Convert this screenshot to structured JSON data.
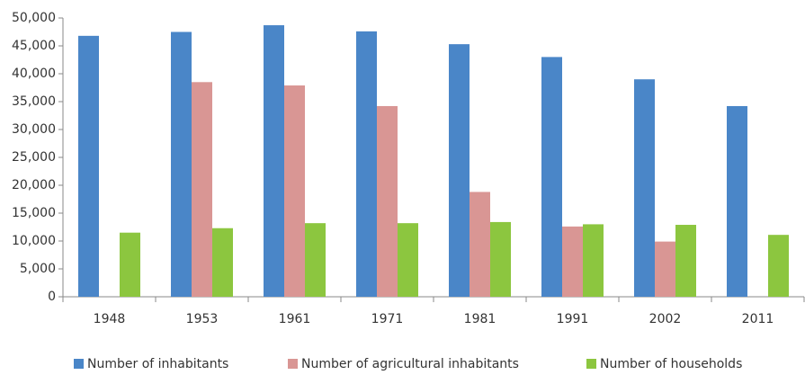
{
  "chart_data": {
    "type": "bar",
    "categories": [
      "1948",
      "1953",
      "1961",
      "1971",
      "1981",
      "1991",
      "2002",
      "2011"
    ],
    "series": [
      {
        "name": "Number of inhabitants",
        "color": "#4a86c8",
        "values": [
          46800,
          47500,
          48700,
          47600,
          45300,
          43000,
          39000,
          34200
        ]
      },
      {
        "name": "Number of agricultural inhabitants",
        "color": "#d99694",
        "values": [
          null,
          38500,
          37900,
          34200,
          18800,
          12600,
          9900,
          null
        ]
      },
      {
        "name": "Number of households",
        "color": "#8cc63f",
        "values": [
          11500,
          12300,
          13200,
          13200,
          13400,
          13000,
          12900,
          11100
        ]
      }
    ],
    "ylim": [
      0,
      50000
    ],
    "yticks": [
      0,
      {
        "value": 5000,
        "label": "5,000"
      },
      {
        "value": 10000,
        "label": "10,000"
      },
      {
        "value": 15000,
        "label": "15,000"
      },
      {
        "value": 20000,
        "label": "20,000"
      },
      {
        "value": 25000,
        "label": "25,000"
      },
      {
        "value": 30000,
        "label": "30,000"
      },
      {
        "value": 35000,
        "label": "35,000"
      },
      {
        "value": 40000,
        "label": "40,000"
      },
      {
        "value": 45000,
        "label": "45,000"
      },
      {
        "value": 50000,
        "label": "50,000"
      }
    ],
    "grid": false,
    "legend": "bottom"
  }
}
